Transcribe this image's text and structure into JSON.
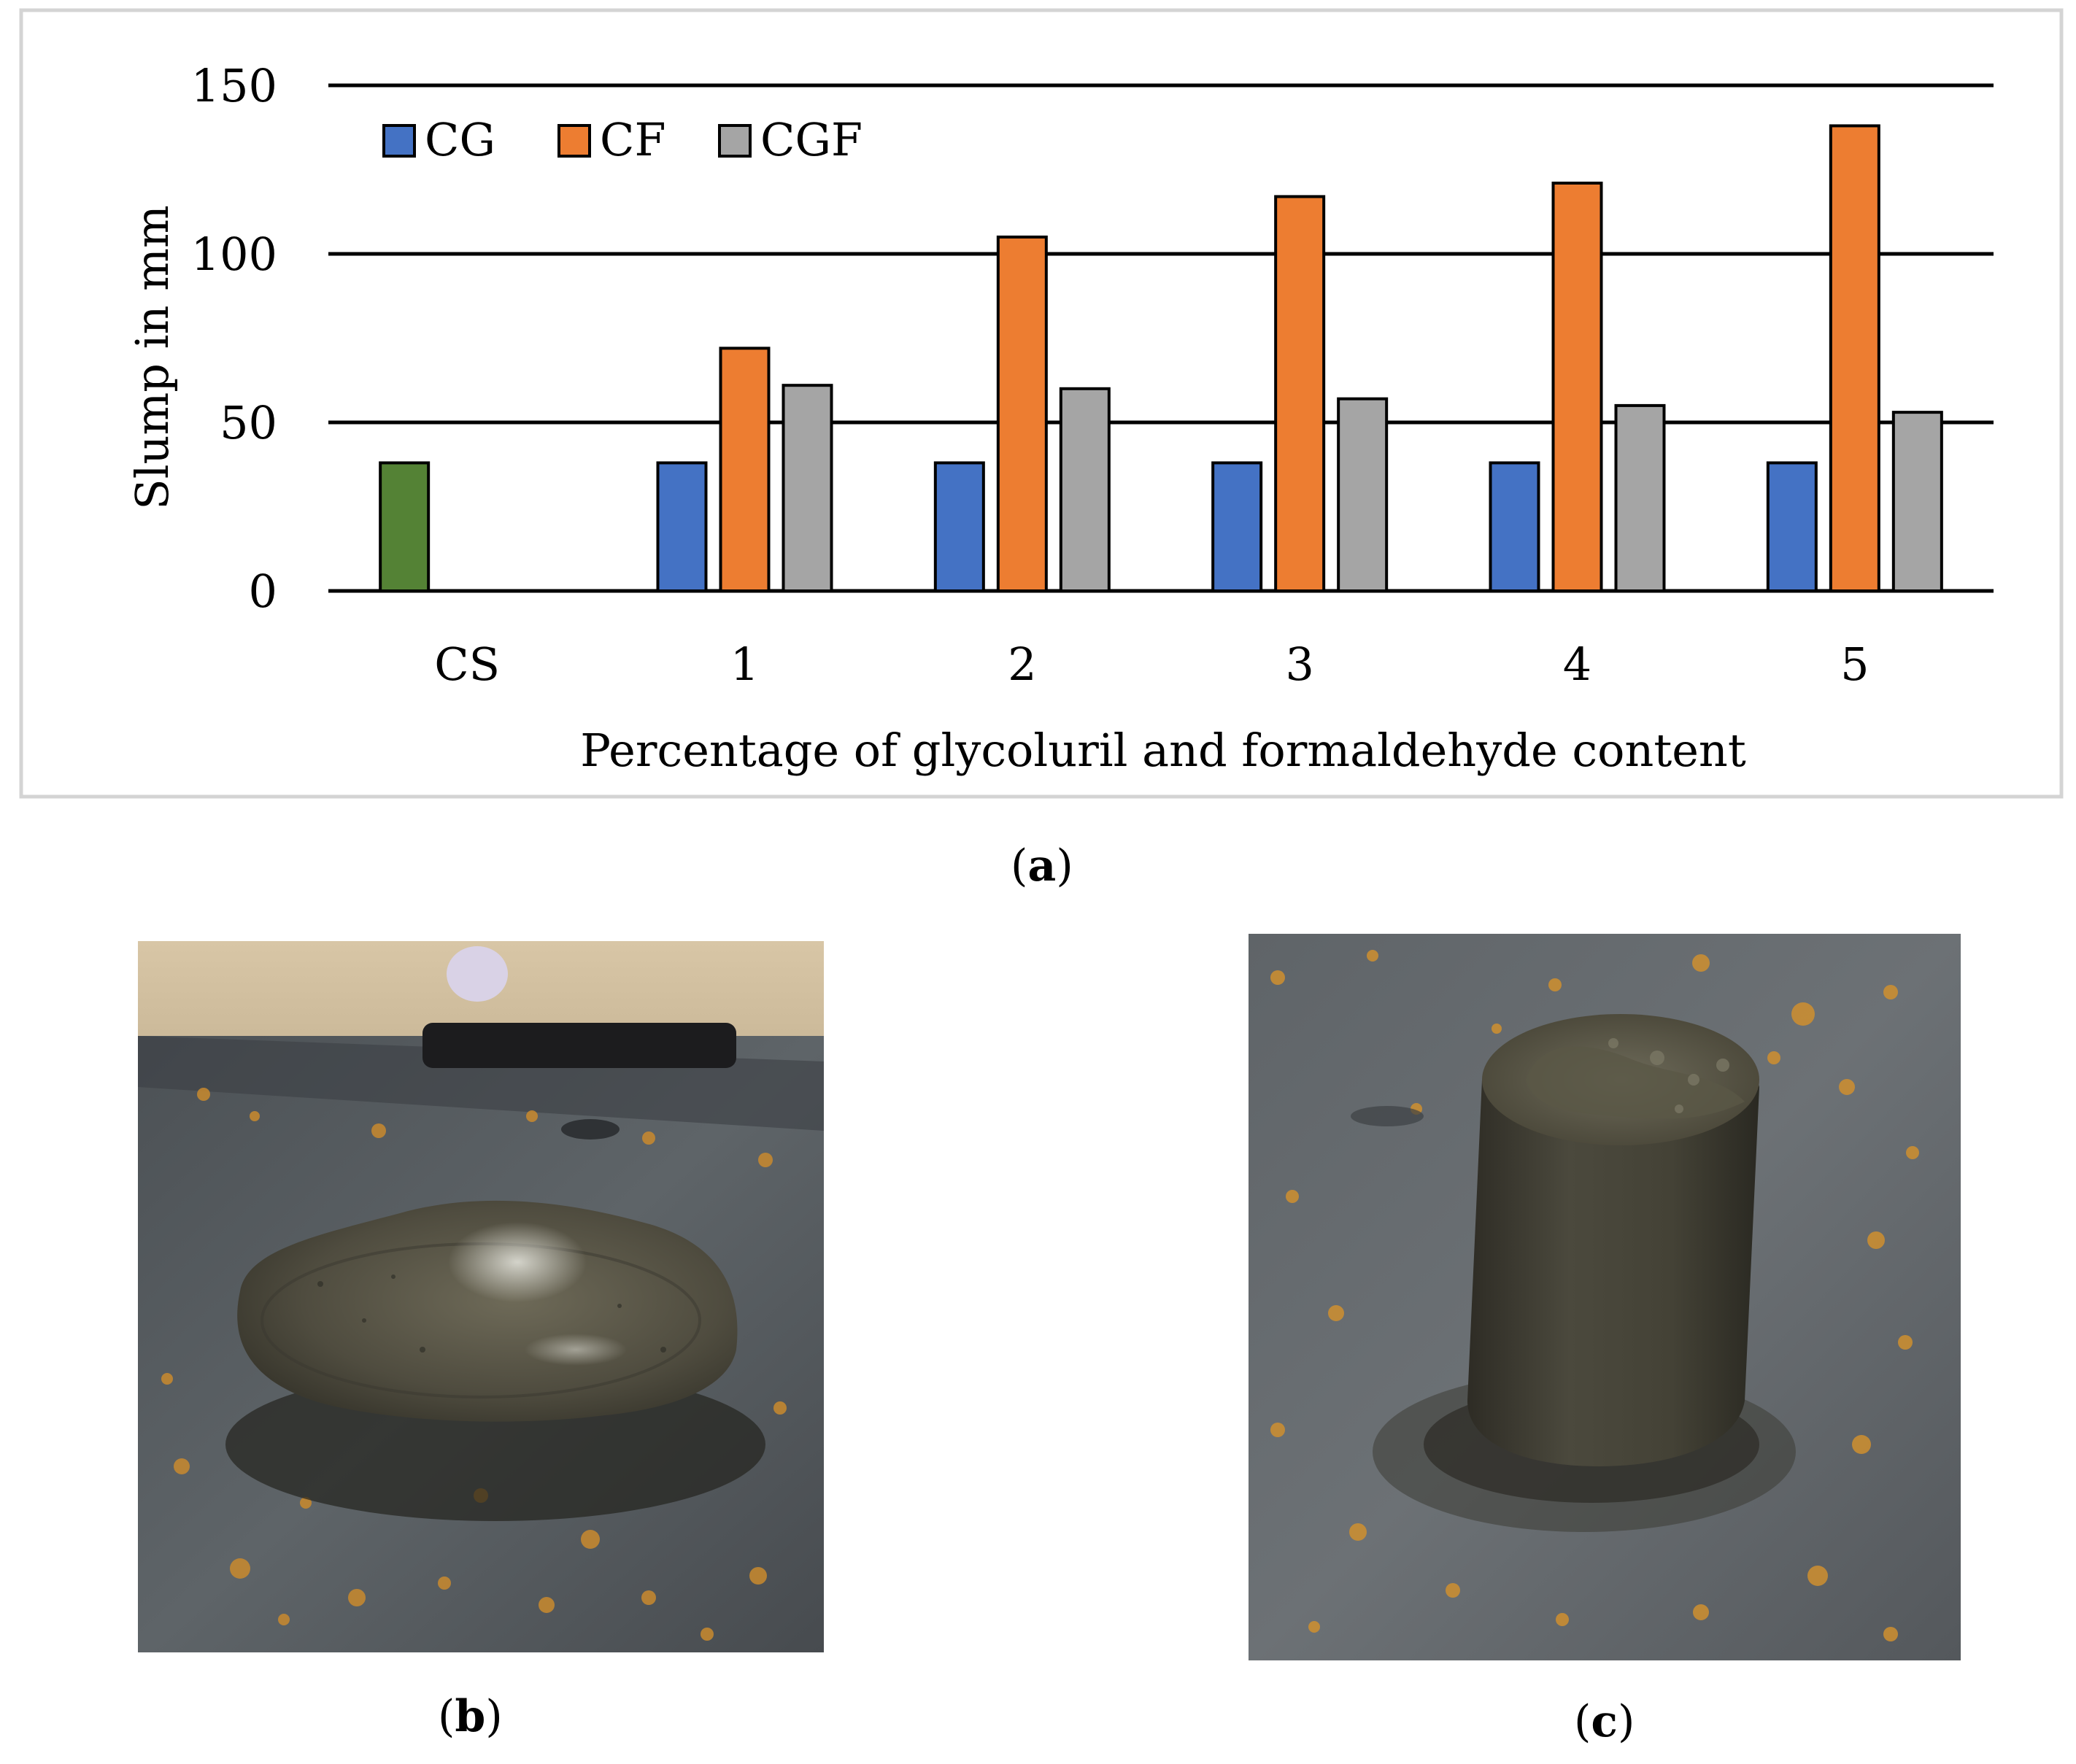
{
  "chart_data": {
    "type": "bar",
    "categories": [
      "CS",
      "1",
      "2",
      "3",
      "4",
      "5"
    ],
    "series": [
      {
        "name": "CG",
        "color": "#4472C4",
        "values": [
          null,
          38,
          38,
          38,
          38,
          38
        ]
      },
      {
        "name": "CF",
        "color": "#ED7D31",
        "values": [
          null,
          72,
          105,
          117,
          121,
          138
        ]
      },
      {
        "name": "CGF",
        "color": "#A5A5A5",
        "values": [
          null,
          61,
          60,
          57,
          55,
          53
        ]
      }
    ],
    "control": {
      "category": "CS",
      "value": 38,
      "color": "#548235"
    },
    "xlabel": "Percentage of glycoluril and formaldehyde content",
    "ylabel": "Slump in mm",
    "ylim": [
      0,
      150
    ],
    "yticks": [
      0,
      50,
      100,
      150
    ],
    "grid": true,
    "legend_position": "top-left"
  },
  "panels": {
    "a": {
      "letter": "a"
    },
    "b": {
      "letter": "b"
    },
    "c": {
      "letter": "c"
    }
  }
}
